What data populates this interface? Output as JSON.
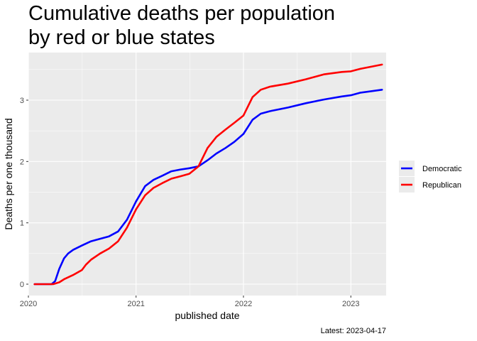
{
  "chart_data": {
    "type": "line",
    "title": "Cumulative deaths per population\nby red or blue states",
    "xlabel": "published date",
    "ylabel": "Deaths per one thousand",
    "caption": "Latest: 2023-04-17",
    "xlim": [
      "2020-01-01",
      "2023-05-01"
    ],
    "ylim": [
      0,
      3.6
    ],
    "x_ticks": [
      "2020-01-01",
      "2021-01-01",
      "2022-01-01",
      "2023-01-01"
    ],
    "x_tick_labels": [
      "2020",
      "2021",
      "2022",
      "2023"
    ],
    "y_ticks": [
      0,
      1,
      2,
      3
    ],
    "y_tick_labels": [
      "0",
      "1",
      "2",
      "3"
    ],
    "grid": true,
    "legend_position": "right",
    "series": [
      {
        "name": "Democratic",
        "color": "#0000ff",
        "points": [
          [
            "2020-01-22",
            0
          ],
          [
            "2020-03-20",
            0
          ],
          [
            "2020-04-01",
            0.05
          ],
          [
            "2020-04-15",
            0.25
          ],
          [
            "2020-05-01",
            0.42
          ],
          [
            "2020-05-15",
            0.5
          ],
          [
            "2020-06-01",
            0.56
          ],
          [
            "2020-07-01",
            0.63
          ],
          [
            "2020-08-01",
            0.7
          ],
          [
            "2020-09-01",
            0.74
          ],
          [
            "2020-10-01",
            0.78
          ],
          [
            "2020-11-01",
            0.86
          ],
          [
            "2020-12-01",
            1.05
          ],
          [
            "2021-01-01",
            1.35
          ],
          [
            "2021-02-01",
            1.6
          ],
          [
            "2021-03-01",
            1.7
          ],
          [
            "2021-04-01",
            1.77
          ],
          [
            "2021-05-01",
            1.84
          ],
          [
            "2021-06-01",
            1.87
          ],
          [
            "2021-07-01",
            1.89
          ],
          [
            "2021-08-01",
            1.92
          ],
          [
            "2021-09-01",
            2.02
          ],
          [
            "2021-10-01",
            2.13
          ],
          [
            "2021-11-01",
            2.22
          ],
          [
            "2021-12-01",
            2.32
          ],
          [
            "2022-01-01",
            2.45
          ],
          [
            "2022-02-01",
            2.68
          ],
          [
            "2022-03-01",
            2.78
          ],
          [
            "2022-04-01",
            2.82
          ],
          [
            "2022-06-01",
            2.88
          ],
          [
            "2022-08-01",
            2.95
          ],
          [
            "2022-10-01",
            3.01
          ],
          [
            "2022-12-01",
            3.06
          ],
          [
            "2023-01-01",
            3.08
          ],
          [
            "2023-02-01",
            3.12
          ],
          [
            "2023-04-17",
            3.17
          ]
        ]
      },
      {
        "name": "Republican",
        "color": "#ff0000",
        "points": [
          [
            "2020-01-22",
            0
          ],
          [
            "2020-03-25",
            0
          ],
          [
            "2020-04-15",
            0.03
          ],
          [
            "2020-05-01",
            0.08
          ],
          [
            "2020-06-01",
            0.15
          ],
          [
            "2020-07-01",
            0.23
          ],
          [
            "2020-07-15",
            0.32
          ],
          [
            "2020-08-01",
            0.4
          ],
          [
            "2020-09-01",
            0.5
          ],
          [
            "2020-10-01",
            0.58
          ],
          [
            "2020-11-01",
            0.7
          ],
          [
            "2020-12-01",
            0.92
          ],
          [
            "2021-01-01",
            1.22
          ],
          [
            "2021-02-01",
            1.45
          ],
          [
            "2021-03-01",
            1.57
          ],
          [
            "2021-04-01",
            1.65
          ],
          [
            "2021-05-01",
            1.72
          ],
          [
            "2021-06-01",
            1.76
          ],
          [
            "2021-07-01",
            1.8
          ],
          [
            "2021-08-01",
            1.92
          ],
          [
            "2021-09-01",
            2.22
          ],
          [
            "2021-10-01",
            2.4
          ],
          [
            "2021-11-01",
            2.52
          ],
          [
            "2021-12-01",
            2.63
          ],
          [
            "2022-01-01",
            2.75
          ],
          [
            "2022-02-01",
            3.05
          ],
          [
            "2022-03-01",
            3.17
          ],
          [
            "2022-04-01",
            3.22
          ],
          [
            "2022-06-01",
            3.27
          ],
          [
            "2022-08-01",
            3.34
          ],
          [
            "2022-10-01",
            3.42
          ],
          [
            "2022-12-01",
            3.46
          ],
          [
            "2023-01-01",
            3.47
          ],
          [
            "2023-02-01",
            3.51
          ],
          [
            "2023-04-17",
            3.58
          ]
        ]
      }
    ]
  }
}
